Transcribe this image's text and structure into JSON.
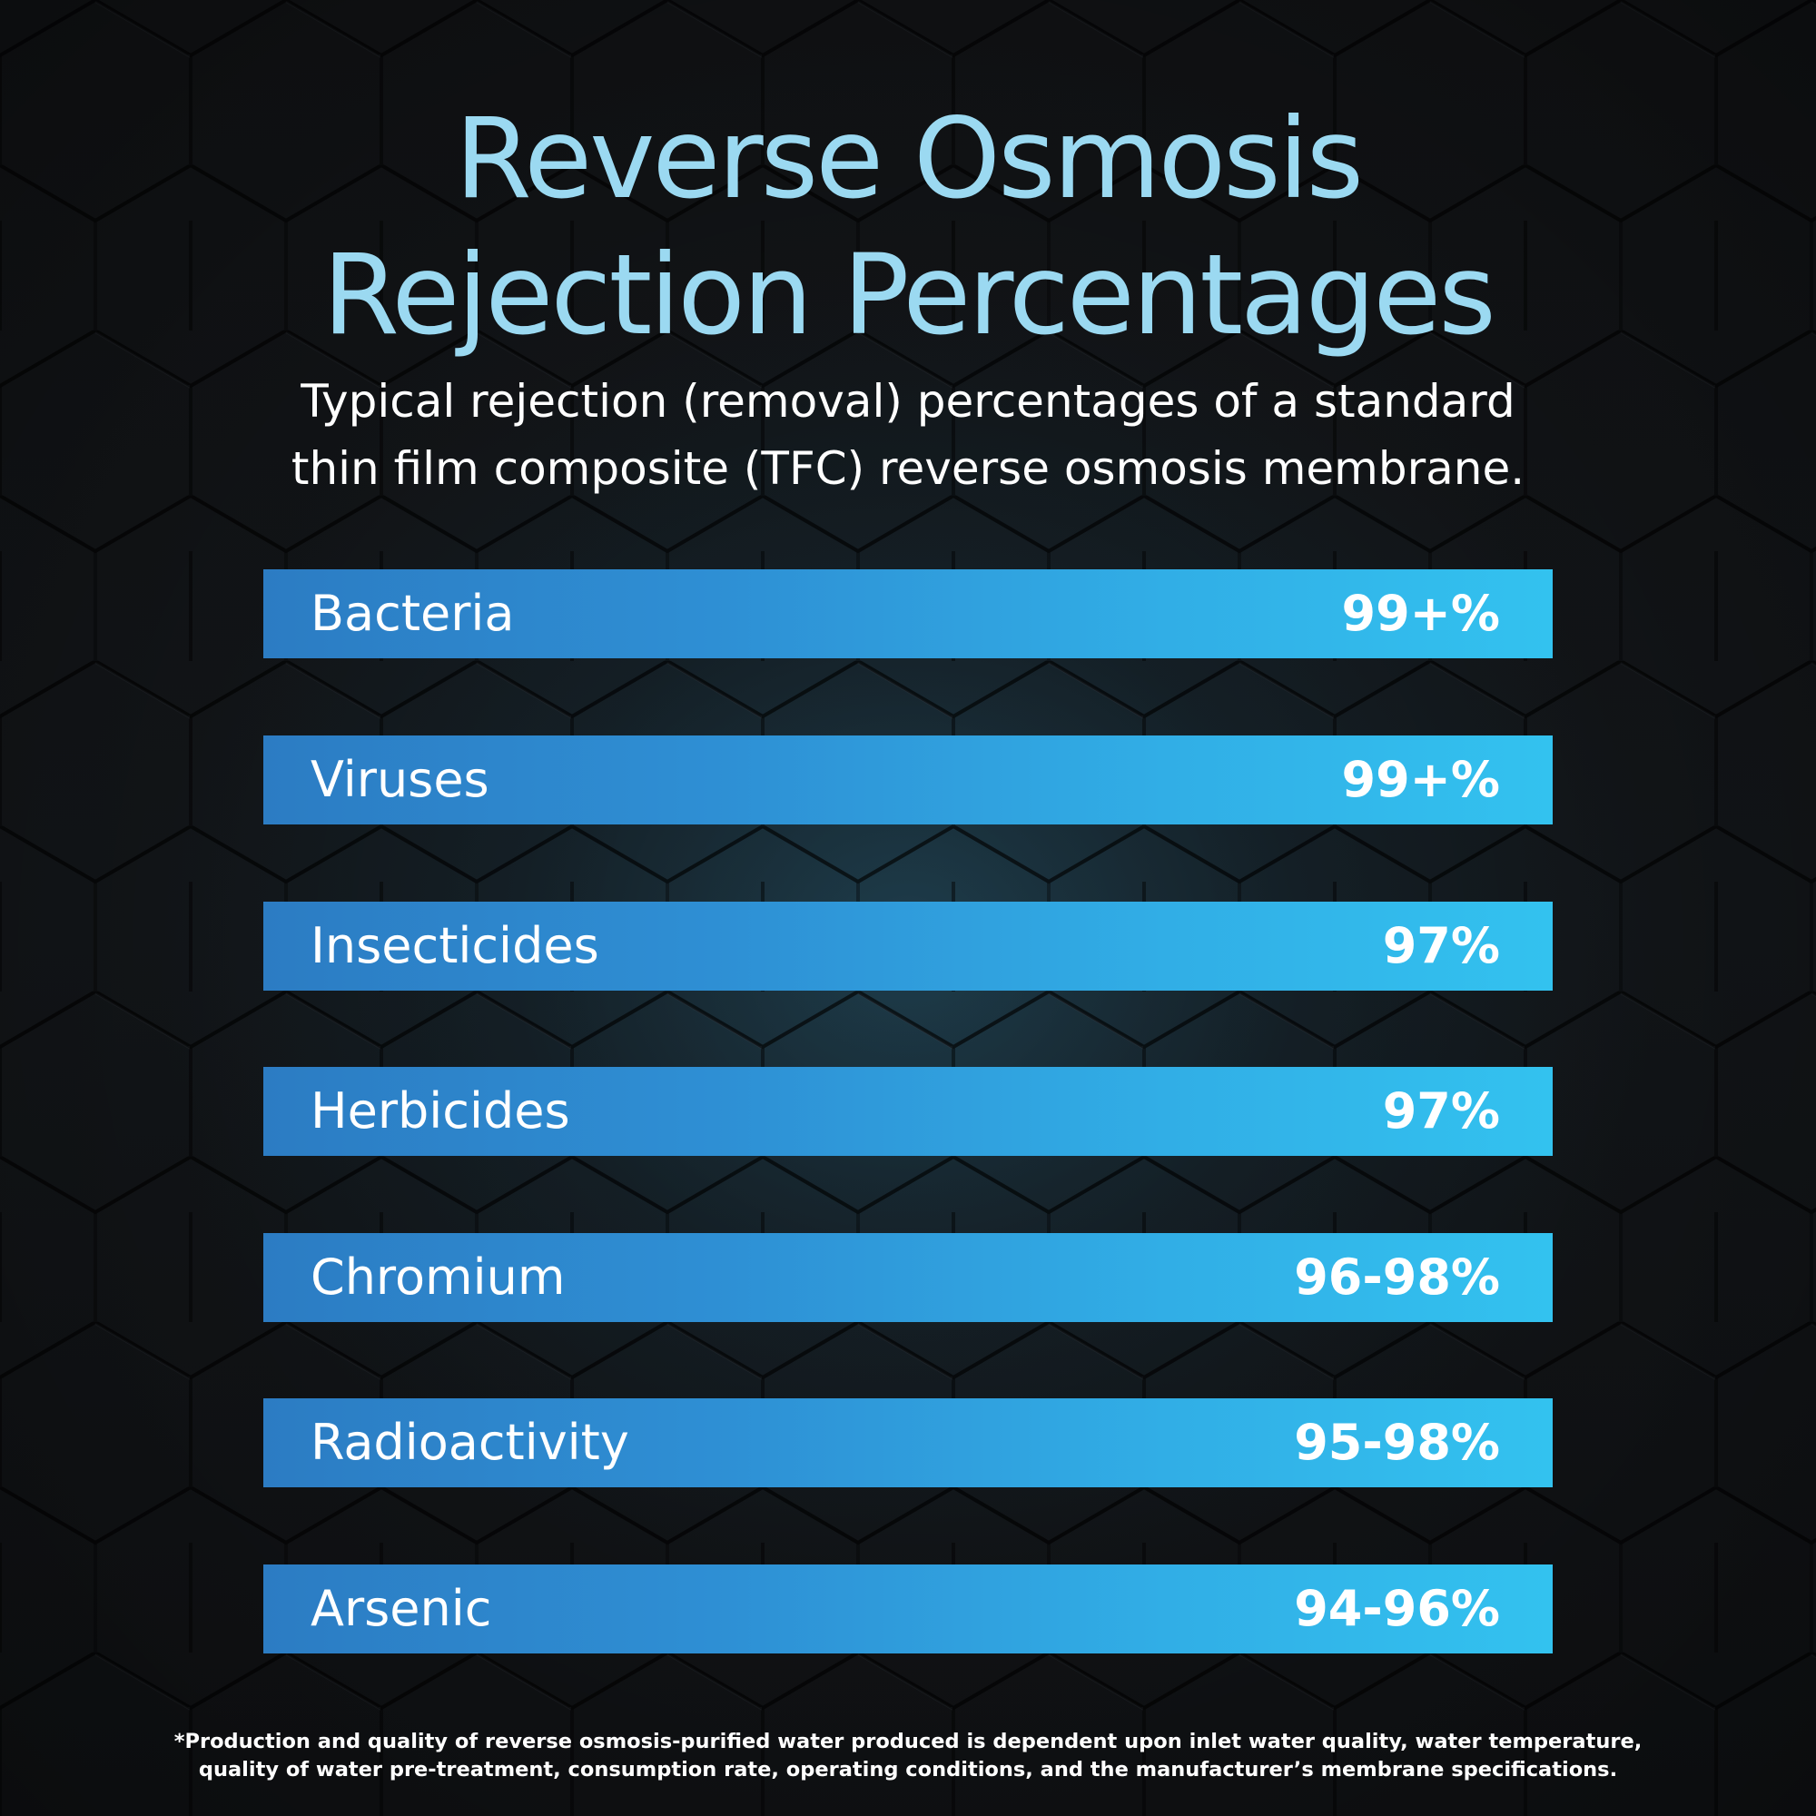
{
  "title": {
    "line1": "Reverse Osmosis",
    "line2": "Rejection Percentages"
  },
  "subtitle": {
    "line1": "Typical rejection (removal) percentages of a standard",
    "line2": "thin film composite (TFC) reverse osmosis membrane."
  },
  "rows": [
    {
      "label": "Bacteria",
      "value": "99+%"
    },
    {
      "label": "Viruses",
      "value": "99+%"
    },
    {
      "label": "Insecticides",
      "value": "97%"
    },
    {
      "label": "Herbicides",
      "value": "97%"
    },
    {
      "label": "Chromium",
      "value": "96-98%"
    },
    {
      "label": "Radioactivity",
      "value": "95-98%"
    },
    {
      "label": "Arsenic",
      "value": "94-96%"
    }
  ],
  "footnote": {
    "line1": "*Production and quality of reverse osmosis-purified water produced is dependent upon inlet water quality, water temperature,",
    "line2": "quality of water pre-treatment, consumption rate, operating conditions, and the manufacturer’s membrane specifications."
  },
  "colors": {
    "title": "#9bd9f1",
    "bar_start": "#2c7cc3",
    "bar_end": "#33c2ef",
    "background": "#141618"
  }
}
